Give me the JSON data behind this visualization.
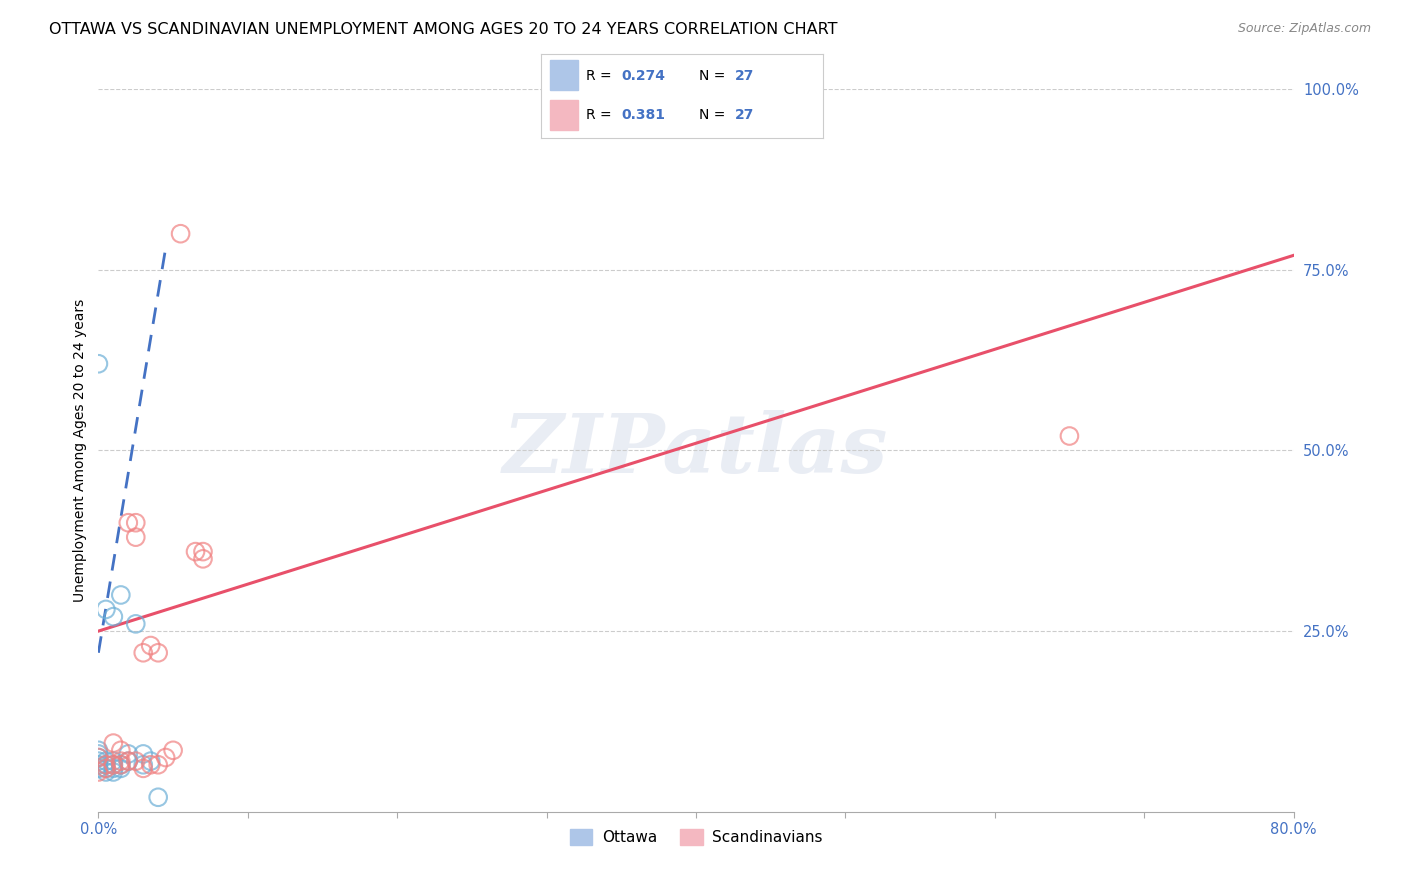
{
  "title": "OTTAWA VS SCANDINAVIAN UNEMPLOYMENT AMONG AGES 20 TO 24 YEARS CORRELATION CHART",
  "source": "Source: ZipAtlas.com",
  "ylabel": "Unemployment Among Ages 20 to 24 years",
  "xlim": [
    0.0,
    0.8
  ],
  "ylim": [
    0.0,
    1.0
  ],
  "ytick_labels": [
    "25.0%",
    "50.0%",
    "75.0%",
    "100.0%"
  ],
  "ytick_positions": [
    0.25,
    0.5,
    0.75,
    1.0
  ],
  "ottawa_color": "#6baed6",
  "scandinavian_color": "#f08080",
  "ottawa_R": 0.274,
  "ottawa_N": 27,
  "scandinavian_R": 0.381,
  "scandinavian_N": 27,
  "ottawa_x": [
    0.0,
    0.0,
    0.0,
    0.0,
    0.0,
    0.0,
    0.0,
    0.005,
    0.005,
    0.005,
    0.005,
    0.005,
    0.01,
    0.01,
    0.01,
    0.01,
    0.01,
    0.015,
    0.015,
    0.015,
    0.02,
    0.02,
    0.025,
    0.03,
    0.03,
    0.035,
    0.04
  ],
  "ottawa_y": [
    0.06,
    0.065,
    0.07,
    0.075,
    0.08,
    0.085,
    0.62,
    0.055,
    0.06,
    0.065,
    0.07,
    0.28,
    0.055,
    0.06,
    0.065,
    0.07,
    0.27,
    0.06,
    0.065,
    0.3,
    0.07,
    0.08,
    0.26,
    0.065,
    0.08,
    0.07,
    0.02
  ],
  "scandinavian_x": [
    0.0,
    0.0,
    0.005,
    0.005,
    0.01,
    0.01,
    0.015,
    0.015,
    0.015,
    0.02,
    0.02,
    0.025,
    0.025,
    0.025,
    0.03,
    0.03,
    0.035,
    0.035,
    0.04,
    0.04,
    0.045,
    0.05,
    0.055,
    0.065,
    0.65,
    0.07,
    0.07
  ],
  "scandinavian_y": [
    0.055,
    0.075,
    0.06,
    0.065,
    0.065,
    0.095,
    0.065,
    0.07,
    0.085,
    0.07,
    0.4,
    0.07,
    0.38,
    0.4,
    0.06,
    0.22,
    0.065,
    0.23,
    0.065,
    0.22,
    0.075,
    0.085,
    0.8,
    0.36,
    0.52,
    0.35,
    0.36
  ],
  "scand_line_x0": 0.0,
  "scand_line_y0": 0.25,
  "scand_line_x1": 0.8,
  "scand_line_y1": 0.77,
  "ottawa_line_x0": 0.0,
  "ottawa_line_y0": 0.22,
  "ottawa_line_x1": 0.045,
  "ottawa_line_y1": 0.78,
  "watermark_text": "ZIPatlas",
  "background_color": "#ffffff",
  "title_fontsize": 11.5,
  "label_fontsize": 10,
  "tick_fontsize": 10.5,
  "source_fontsize": 9
}
